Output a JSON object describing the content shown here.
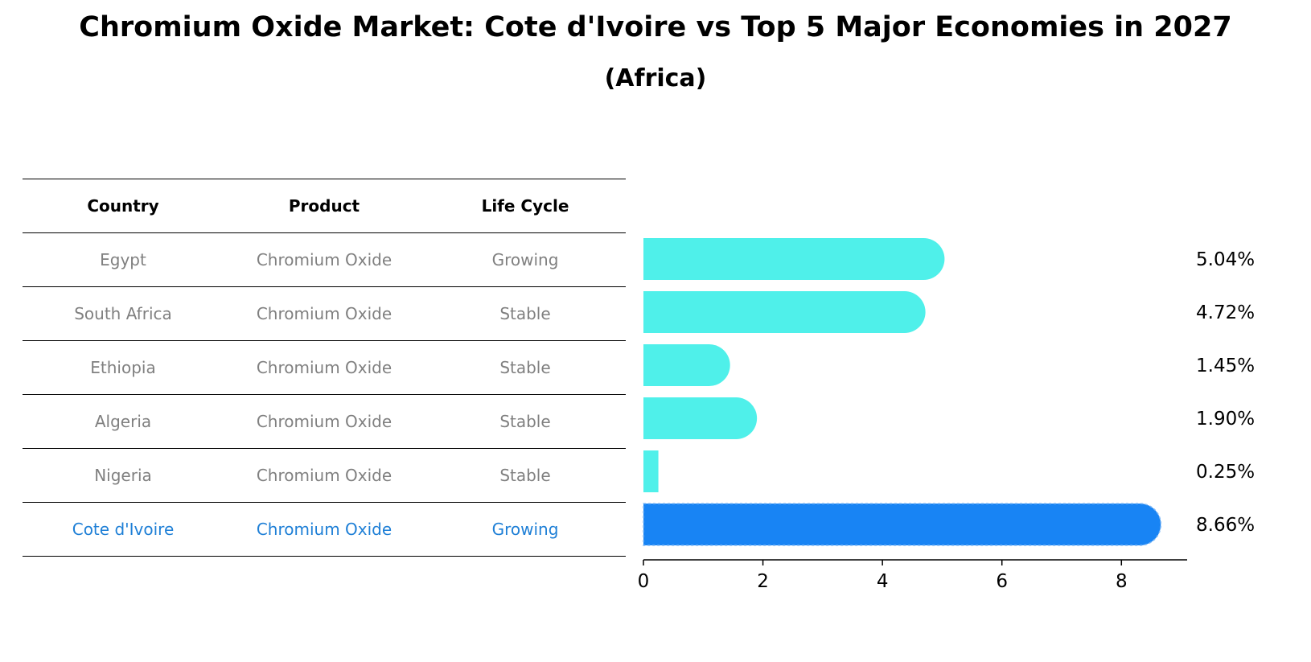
{
  "title": "Chromium Oxide Market: Cote d'Ivoire vs Top 5 Major Economies in 2027",
  "subtitle": "(Africa)",
  "table": {
    "headers": [
      "Country",
      "Product",
      "Life Cycle"
    ],
    "rows": [
      {
        "country": "Egypt",
        "product": "Chromium Oxide",
        "life_cycle": "Growing"
      },
      {
        "country": "South Africa",
        "product": "Chromium Oxide",
        "life_cycle": "Stable"
      },
      {
        "country": "Ethiopia",
        "product": "Chromium Oxide",
        "life_cycle": "Stable"
      },
      {
        "country": "Algeria",
        "product": "Chromium Oxide",
        "life_cycle": "Stable"
      },
      {
        "country": "Nigeria",
        "product": "Chromium Oxide",
        "life_cycle": "Stable"
      },
      {
        "country": "Cote d'Ivoire",
        "product": "Chromium Oxide",
        "life_cycle": "Growing"
      }
    ]
  },
  "chart_data": {
    "type": "bar",
    "orientation": "horizontal",
    "categories": [
      "Egypt",
      "South Africa",
      "Ethiopia",
      "Algeria",
      "Nigeria",
      "Cote d'Ivoire"
    ],
    "values": [
      5.04,
      4.72,
      1.45,
      1.9,
      0.25,
      8.66
    ],
    "value_labels": [
      "5.04%",
      "4.72%",
      "1.45%",
      "1.90%",
      "0.25%",
      "8.66%"
    ],
    "highlight": "Cote d'Ivoire",
    "xlim": [
      0,
      9.1
    ],
    "xticks": [
      0,
      2,
      4,
      6,
      8
    ],
    "grid": false,
    "colors": {
      "default": "#4ff0ea",
      "highlight": "#1884f4",
      "table_text": "#808080",
      "highlight_text": "#1e7fd6"
    }
  }
}
